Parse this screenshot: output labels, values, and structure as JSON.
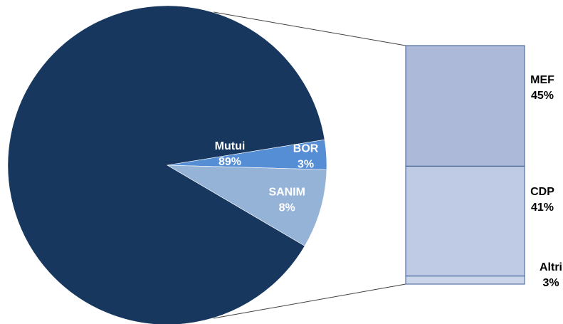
{
  "chart_data": [
    {
      "type": "pie",
      "categories": [
        "Mutui",
        "BOR",
        "SANIM"
      ],
      "labels": [
        "Mutui",
        "BOR",
        "SANIM"
      ],
      "values": [
        89,
        3,
        8
      ],
      "value_labels": [
        "89%",
        "3%",
        "8%"
      ],
      "colors": [
        "#17375e",
        "#558ed5",
        "#95b3d7"
      ],
      "unit": "%"
    },
    {
      "type": "bar",
      "stacked": true,
      "categories": [
        "MEF",
        "CDP",
        "Altri"
      ],
      "labels": [
        "MEF",
        "CDP",
        "Altri"
      ],
      "values": [
        45,
        41,
        3
      ],
      "value_labels": [
        "45%",
        "41%",
        "3%"
      ],
      "colors": [
        "#adb9d9",
        "#bfcae4",
        "#ccd6ea"
      ],
      "unit": "%"
    }
  ]
}
